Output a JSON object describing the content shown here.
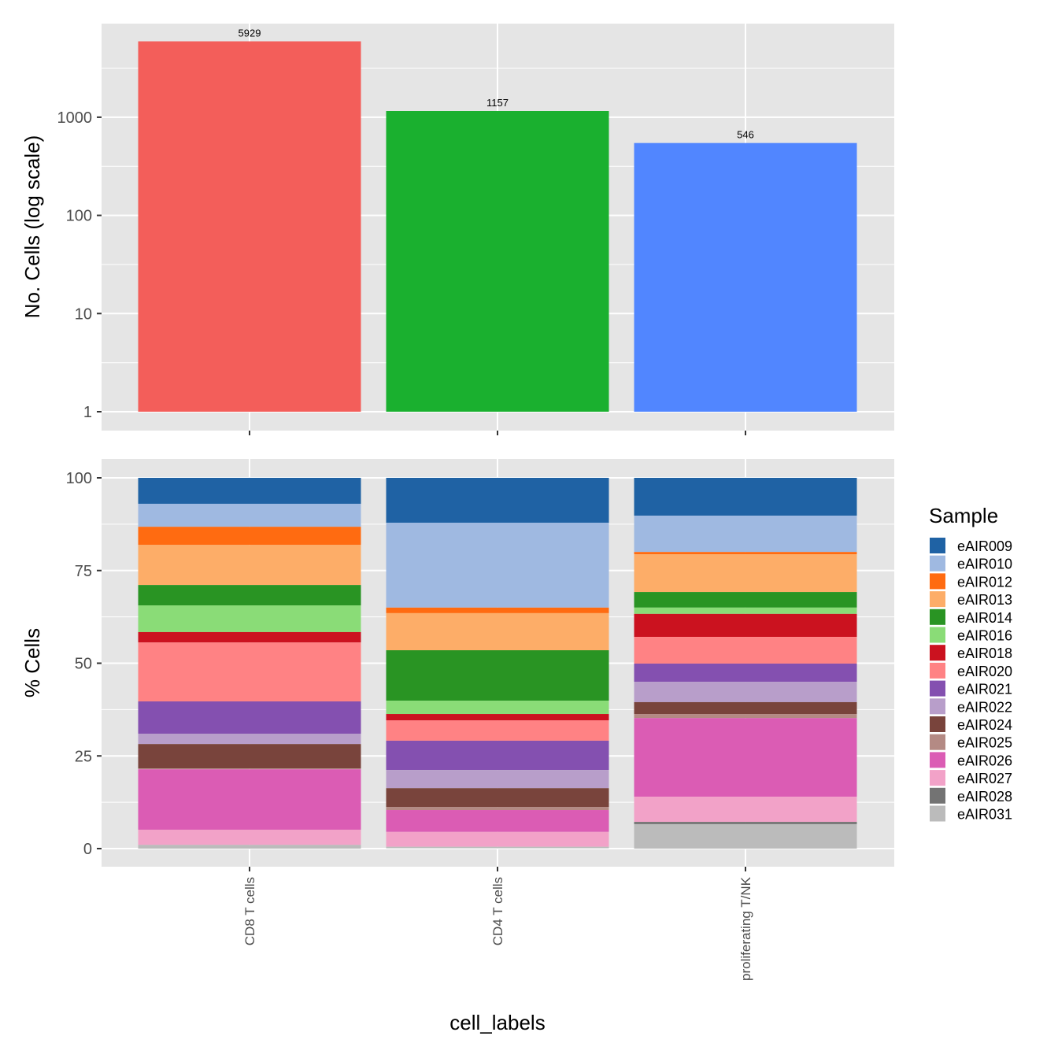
{
  "chart_data": [
    {
      "type": "bar",
      "panel": "top",
      "ylabel": "No. Cells (log scale)",
      "yscale": "log",
      "ylim": [
        1,
        8000
      ],
      "yticks": [
        1,
        10,
        100,
        1000
      ],
      "ytick_labels": [
        "1",
        "10",
        "100",
        "1000"
      ],
      "categories": [
        "CD8 T cells",
        "CD4 T cells",
        "proliferating T/NK"
      ],
      "values": [
        5929,
        1157,
        546
      ],
      "data_labels": [
        "5929",
        "1157",
        "546"
      ],
      "colors": [
        "#F35E5A",
        "#1AB02F",
        "#5186FF"
      ],
      "grid": true
    },
    {
      "type": "bar",
      "stacked": true,
      "panel": "bottom",
      "ylabel": "% Cells",
      "xlabel": "cell_labels",
      "ylim": [
        0,
        100
      ],
      "yticks": [
        0,
        25,
        50,
        75,
        100
      ],
      "ytick_labels": [
        "0",
        "25",
        "50",
        "75",
        "100"
      ],
      "categories": [
        "CD8 T cells",
        "CD4 T cells",
        "proliferating T/NK"
      ],
      "legend_title": "Sample",
      "legend_position": "right",
      "series": [
        {
          "name": "eAIR009",
          "color": "#1F62A4",
          "values": [
            7.0,
            12.1,
            10.2
          ]
        },
        {
          "name": "eAIR010",
          "color": "#9FB9E1",
          "values": [
            6.2,
            22.9,
            9.8
          ]
        },
        {
          "name": "eAIR012",
          "color": "#FF6B11",
          "values": [
            4.9,
            1.5,
            0.6
          ]
        },
        {
          "name": "eAIR013",
          "color": "#FDAD68",
          "values": [
            10.8,
            10.0,
            10.2
          ]
        },
        {
          "name": "eAIR014",
          "color": "#299423",
          "values": [
            5.5,
            13.6,
            4.2
          ]
        },
        {
          "name": "eAIR016",
          "color": "#8ADC77",
          "values": [
            7.2,
            3.6,
            1.7
          ]
        },
        {
          "name": "eAIR018",
          "color": "#CB121F",
          "values": [
            2.8,
            1.7,
            6.2
          ]
        },
        {
          "name": "eAIR020",
          "color": "#FF8284",
          "values": [
            15.9,
            5.5,
            7.2
          ]
        },
        {
          "name": "eAIR021",
          "color": "#8450B0",
          "values": [
            8.7,
            7.9,
            4.9
          ]
        },
        {
          "name": "eAIR022",
          "color": "#B89ECA",
          "values": [
            2.8,
            4.9,
            5.5
          ]
        },
        {
          "name": "eAIR024",
          "color": "#79443C",
          "values": [
            6.6,
            5.1,
            3.2
          ]
        },
        {
          "name": "eAIR025",
          "color": "#B48A84",
          "values": [
            0.2,
            0.8,
            1.1
          ]
        },
        {
          "name": "eAIR026",
          "color": "#DB5CB4",
          "values": [
            16.3,
            5.9,
            21.2
          ]
        },
        {
          "name": "eAIR027",
          "color": "#F2A2C8",
          "values": [
            4.1,
            4.0,
            6.8
          ]
        },
        {
          "name": "eAIR028",
          "color": "#737373",
          "values": [
            0.0,
            0.0,
            0.6
          ]
        },
        {
          "name": "eAIR031",
          "color": "#BBBBBB",
          "values": [
            1.0,
            0.4,
            6.6
          ]
        }
      ]
    }
  ]
}
